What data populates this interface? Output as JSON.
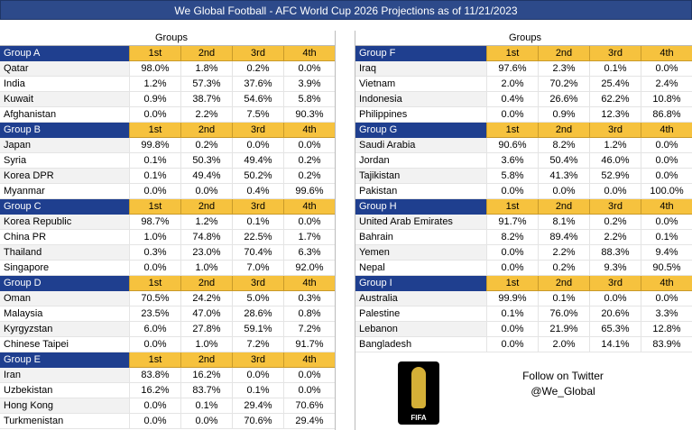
{
  "title": "We Global Football - AFC World Cup 2026 Projections as of 11/21/2023",
  "groups_label": "Groups",
  "columns": [
    "1st",
    "2nd",
    "3rd",
    "4th"
  ],
  "left_groups": [
    {
      "name": "Group A",
      "teams": [
        {
          "team": "Qatar",
          "p": [
            "98.0%",
            "1.8%",
            "0.2%",
            "0.0%"
          ]
        },
        {
          "team": "India",
          "p": [
            "1.2%",
            "57.3%",
            "37.6%",
            "3.9%"
          ]
        },
        {
          "team": "Kuwait",
          "p": [
            "0.9%",
            "38.7%",
            "54.6%",
            "5.8%"
          ]
        },
        {
          "team": "Afghanistan",
          "p": [
            "0.0%",
            "2.2%",
            "7.5%",
            "90.3%"
          ]
        }
      ]
    },
    {
      "name": "Group B",
      "teams": [
        {
          "team": "Japan",
          "p": [
            "99.8%",
            "0.2%",
            "0.0%",
            "0.0%"
          ]
        },
        {
          "team": "Syria",
          "p": [
            "0.1%",
            "50.3%",
            "49.4%",
            "0.2%"
          ]
        },
        {
          "team": "Korea DPR",
          "p": [
            "0.1%",
            "49.4%",
            "50.2%",
            "0.2%"
          ]
        },
        {
          "team": "Myanmar",
          "p": [
            "0.0%",
            "0.0%",
            "0.4%",
            "99.6%"
          ]
        }
      ]
    },
    {
      "name": "Group C",
      "teams": [
        {
          "team": "Korea Republic",
          "p": [
            "98.7%",
            "1.2%",
            "0.1%",
            "0.0%"
          ]
        },
        {
          "team": "China PR",
          "p": [
            "1.0%",
            "74.8%",
            "22.5%",
            "1.7%"
          ]
        },
        {
          "team": "Thailand",
          "p": [
            "0.3%",
            "23.0%",
            "70.4%",
            "6.3%"
          ]
        },
        {
          "team": "Singapore",
          "p": [
            "0.0%",
            "1.0%",
            "7.0%",
            "92.0%"
          ]
        }
      ]
    },
    {
      "name": "Group D",
      "teams": [
        {
          "team": "Oman",
          "p": [
            "70.5%",
            "24.2%",
            "5.0%",
            "0.3%"
          ]
        },
        {
          "team": "Malaysia",
          "p": [
            "23.5%",
            "47.0%",
            "28.6%",
            "0.8%"
          ]
        },
        {
          "team": "Kyrgyzstan",
          "p": [
            "6.0%",
            "27.8%",
            "59.1%",
            "7.2%"
          ]
        },
        {
          "team": "Chinese Taipei",
          "p": [
            "0.0%",
            "1.0%",
            "7.2%",
            "91.7%"
          ]
        }
      ]
    },
    {
      "name": "Group E",
      "teams": [
        {
          "team": "Iran",
          "p": [
            "83.8%",
            "16.2%",
            "0.0%",
            "0.0%"
          ]
        },
        {
          "team": "Uzbekistan",
          "p": [
            "16.2%",
            "83.7%",
            "0.1%",
            "0.0%"
          ]
        },
        {
          "team": "Hong Kong",
          "p": [
            "0.0%",
            "0.1%",
            "29.4%",
            "70.6%"
          ]
        },
        {
          "team": "Turkmenistan",
          "p": [
            "0.0%",
            "0.0%",
            "70.6%",
            "29.4%"
          ]
        }
      ]
    }
  ],
  "right_groups": [
    {
      "name": "Group F",
      "teams": [
        {
          "team": "Iraq",
          "p": [
            "97.6%",
            "2.3%",
            "0.1%",
            "0.0%"
          ]
        },
        {
          "team": "Vietnam",
          "p": [
            "2.0%",
            "70.2%",
            "25.4%",
            "2.4%"
          ]
        },
        {
          "team": "Indonesia",
          "p": [
            "0.4%",
            "26.6%",
            "62.2%",
            "10.8%"
          ]
        },
        {
          "team": "Philippines",
          "p": [
            "0.0%",
            "0.9%",
            "12.3%",
            "86.8%"
          ]
        }
      ]
    },
    {
      "name": "Group G",
      "teams": [
        {
          "team": "Saudi Arabia",
          "p": [
            "90.6%",
            "8.2%",
            "1.2%",
            "0.0%"
          ]
        },
        {
          "team": "Jordan",
          "p": [
            "3.6%",
            "50.4%",
            "46.0%",
            "0.0%"
          ]
        },
        {
          "team": "Tajikistan",
          "p": [
            "5.8%",
            "41.3%",
            "52.9%",
            "0.0%"
          ]
        },
        {
          "team": "Pakistan",
          "p": [
            "0.0%",
            "0.0%",
            "0.0%",
            "100.0%"
          ]
        }
      ]
    },
    {
      "name": "Group H",
      "teams": [
        {
          "team": "United Arab Emirates",
          "p": [
            "91.7%",
            "8.1%",
            "0.2%",
            "0.0%"
          ]
        },
        {
          "team": "Bahrain",
          "p": [
            "8.2%",
            "89.4%",
            "2.2%",
            "0.1%"
          ]
        },
        {
          "team": "Yemen",
          "p": [
            "0.0%",
            "2.2%",
            "88.3%",
            "9.4%"
          ]
        },
        {
          "team": "Nepal",
          "p": [
            "0.0%",
            "0.2%",
            "9.3%",
            "90.5%"
          ]
        }
      ]
    },
    {
      "name": "Group I",
      "teams": [
        {
          "team": "Australia",
          "p": [
            "99.9%",
            "0.1%",
            "0.0%",
            "0.0%"
          ]
        },
        {
          "team": "Palestine",
          "p": [
            "0.1%",
            "76.0%",
            "20.6%",
            "3.3%"
          ]
        },
        {
          "team": "Lebanon",
          "p": [
            "0.0%",
            "21.9%",
            "65.3%",
            "12.8%"
          ]
        },
        {
          "team": "Bangladesh",
          "p": [
            "0.0%",
            "2.0%",
            "14.1%",
            "83.9%"
          ]
        }
      ]
    }
  ],
  "footer": {
    "follow_line1": "Follow on Twitter",
    "follow_line2": "@We_Global",
    "logo_text": "FIFA"
  },
  "colors": {
    "title_bg": "#2d4a8a",
    "group_header_bg": "#1f3f8f",
    "column_header_bg": "#f6c23e"
  }
}
